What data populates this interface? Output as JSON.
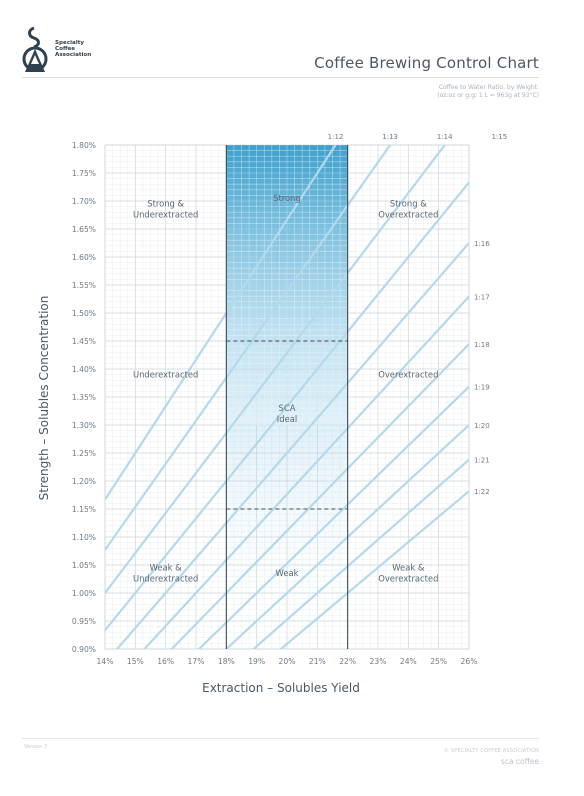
{
  "header": {
    "org_lines": [
      "Specialty",
      "Coffee",
      "Association"
    ],
    "title": "Coffee Brewing Control Chart",
    "note_line1": "Coffee to Water Ratio, by Weight.",
    "note_line2": "(oz:oz or g:g; 1 L = 963g at 93°C)"
  },
  "footer": {
    "version": "Version 3",
    "copyright": "© SPECIALTY COFFEE ASSOCIATION",
    "site": "sca coffee"
  },
  "colors": {
    "grid_fine": "#e3e8ec",
    "grid_major": "#cdd5dc",
    "ratio_line": "#b3d9eb",
    "ideal_fill": "#1a8fc4",
    "boundary": "#3f4a52"
  },
  "chart_data": {
    "type": "line",
    "title": "Coffee Brewing Control Chart",
    "xlabel": "Extraction – Solubles Yield",
    "ylabel": "Strength – Solubles Concentration",
    "xlim": [
      14,
      26
    ],
    "ylim": [
      0.9,
      1.8
    ],
    "x_ticks": [
      "14%",
      "15%",
      "16%",
      "17%",
      "18%",
      "19%",
      "20%",
      "21%",
      "22%",
      "23%",
      "24%",
      "25%",
      "26%"
    ],
    "y_ticks": [
      "0.90%",
      "0.95%",
      "1.00%",
      "1.05%",
      "1.10%",
      "1.15%",
      "1.20%",
      "1.25%",
      "1.30%",
      "1.35%",
      "1.40%",
      "1.45%",
      "1.50%",
      "1.55%",
      "1.60%",
      "1.65%",
      "1.70%",
      "1.75%",
      "1.80%"
    ],
    "grid": true,
    "ratio_lines": [
      {
        "label": "1:12",
        "ratio": 12,
        "label_position": "top"
      },
      {
        "label": "1:13",
        "ratio": 13,
        "label_position": "top"
      },
      {
        "label": "1:14",
        "ratio": 14,
        "label_position": "top"
      },
      {
        "label": "1:15",
        "ratio": 15,
        "label_position": "top"
      },
      {
        "label": "1:16",
        "ratio": 16,
        "label_position": "right"
      },
      {
        "label": "1:17",
        "ratio": 17,
        "label_position": "right"
      },
      {
        "label": "1:18",
        "ratio": 18,
        "label_position": "right"
      },
      {
        "label": "1:19",
        "ratio": 19,
        "label_position": "right"
      },
      {
        "label": "1:20",
        "ratio": 20,
        "label_position": "right"
      },
      {
        "label": "1:21",
        "ratio": 21,
        "label_position": "right"
      },
      {
        "label": "1:22",
        "ratio": 22,
        "label_position": "right"
      }
    ],
    "extraction_bounds": [
      18,
      22
    ],
    "strength_bounds": [
      1.15,
      1.45
    ],
    "zones": [
      {
        "label": [
          "Strong &",
          "Underextracted"
        ],
        "x": 16,
        "y": 1.69
      },
      {
        "label": [
          "Strong"
        ],
        "x": 20,
        "y": 1.7
      },
      {
        "label": [
          "Strong &",
          "Overextracted"
        ],
        "x": 24,
        "y": 1.69
      },
      {
        "label": [
          "Underextracted"
        ],
        "x": 16,
        "y": 1.385
      },
      {
        "label": [
          "SCA",
          "Ideal"
        ],
        "x": 20,
        "y": 1.325
      },
      {
        "label": [
          "Overextracted"
        ],
        "x": 24,
        "y": 1.385
      },
      {
        "label": [
          "Weak &",
          "Underextracted"
        ],
        "x": 16,
        "y": 1.04
      },
      {
        "label": [
          "Weak"
        ],
        "x": 20,
        "y": 1.03
      },
      {
        "label": [
          "Weak &",
          "Overextracted"
        ],
        "x": 24,
        "y": 1.04
      }
    ]
  }
}
